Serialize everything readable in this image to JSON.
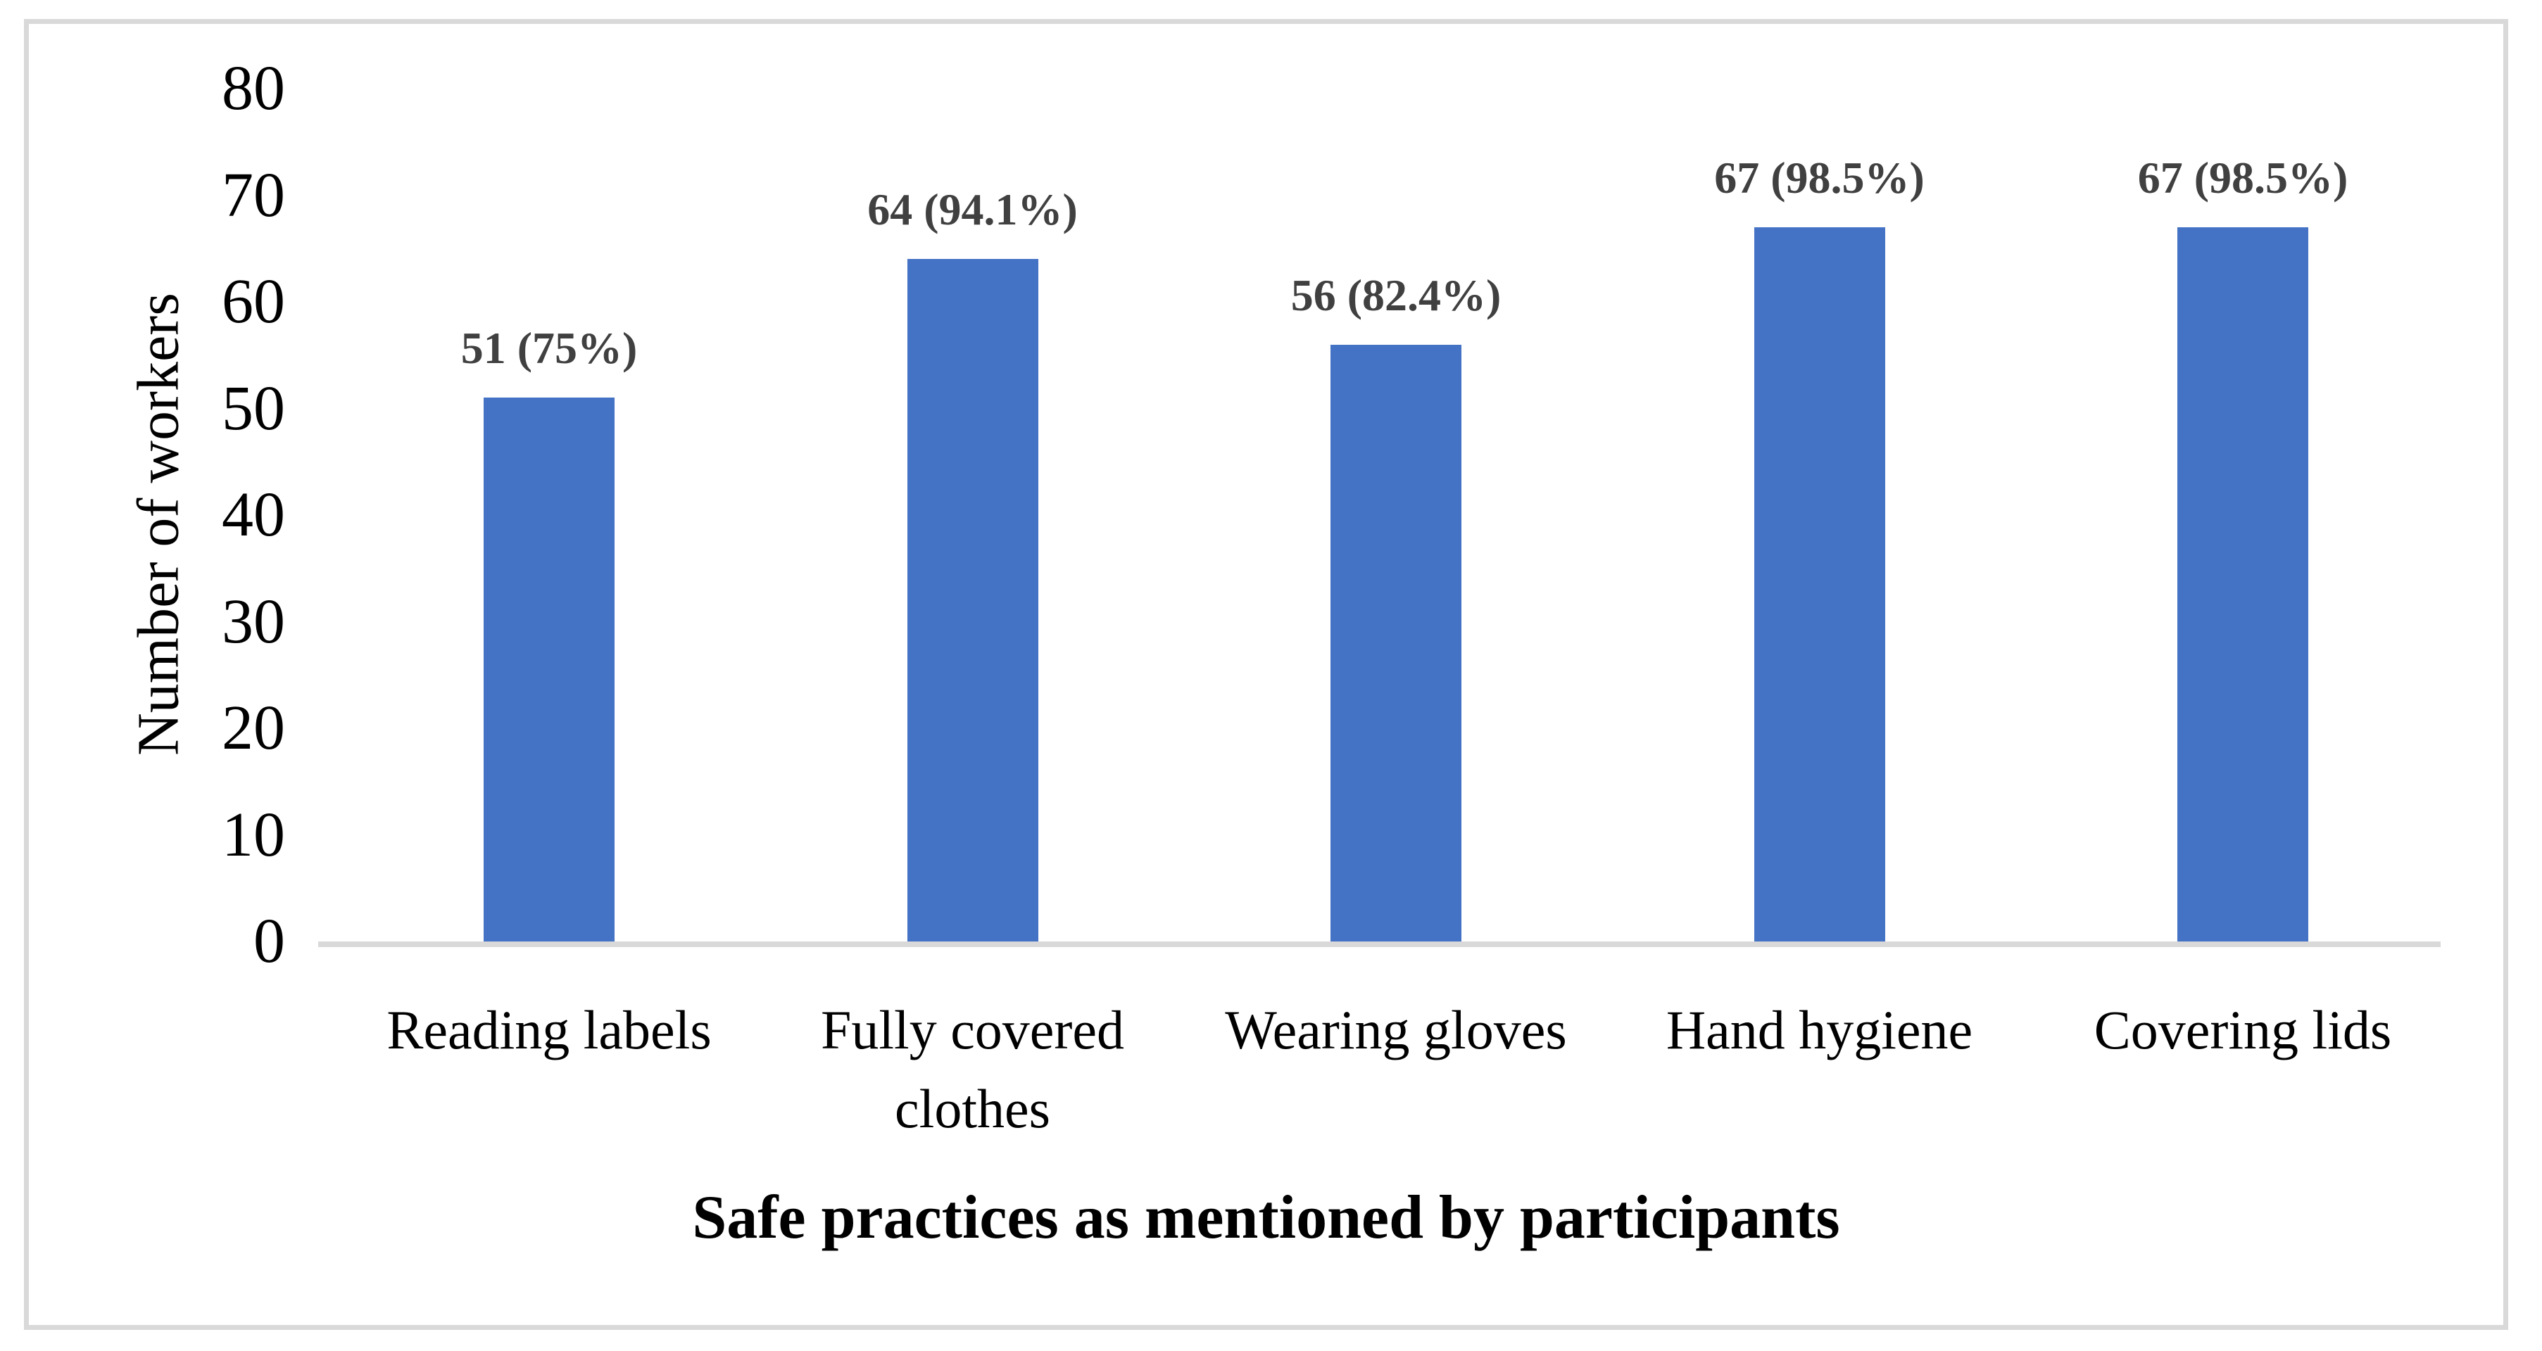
{
  "colors": {
    "bar_fill": "#4472C4",
    "axis_line": "#D9D9D9",
    "figure_border": "#D9D9D9",
    "data_label_text": "#404040",
    "axis_text": "#000000"
  },
  "chart_data": {
    "type": "bar",
    "title": "",
    "xlabel": "Safe practices as mentioned by participants",
    "ylabel": "Number of workers",
    "categories": [
      "Reading labels",
      "Fully covered clothes",
      "Wearing gloves",
      "Hand hygiene",
      "Covering lids"
    ],
    "values": [
      51,
      64,
      56,
      67,
      67
    ],
    "data_labels": [
      "51 (75%)",
      "64 (94.1%)",
      "56 (82.4%)",
      "67 (98.5%)",
      "67 (98.5%)"
    ],
    "yticks": [
      0,
      10,
      20,
      30,
      40,
      50,
      60,
      70,
      80
    ],
    "ylim": [
      0,
      80
    ],
    "grid": false,
    "legend": "none",
    "data_label_position": "outside-end"
  }
}
